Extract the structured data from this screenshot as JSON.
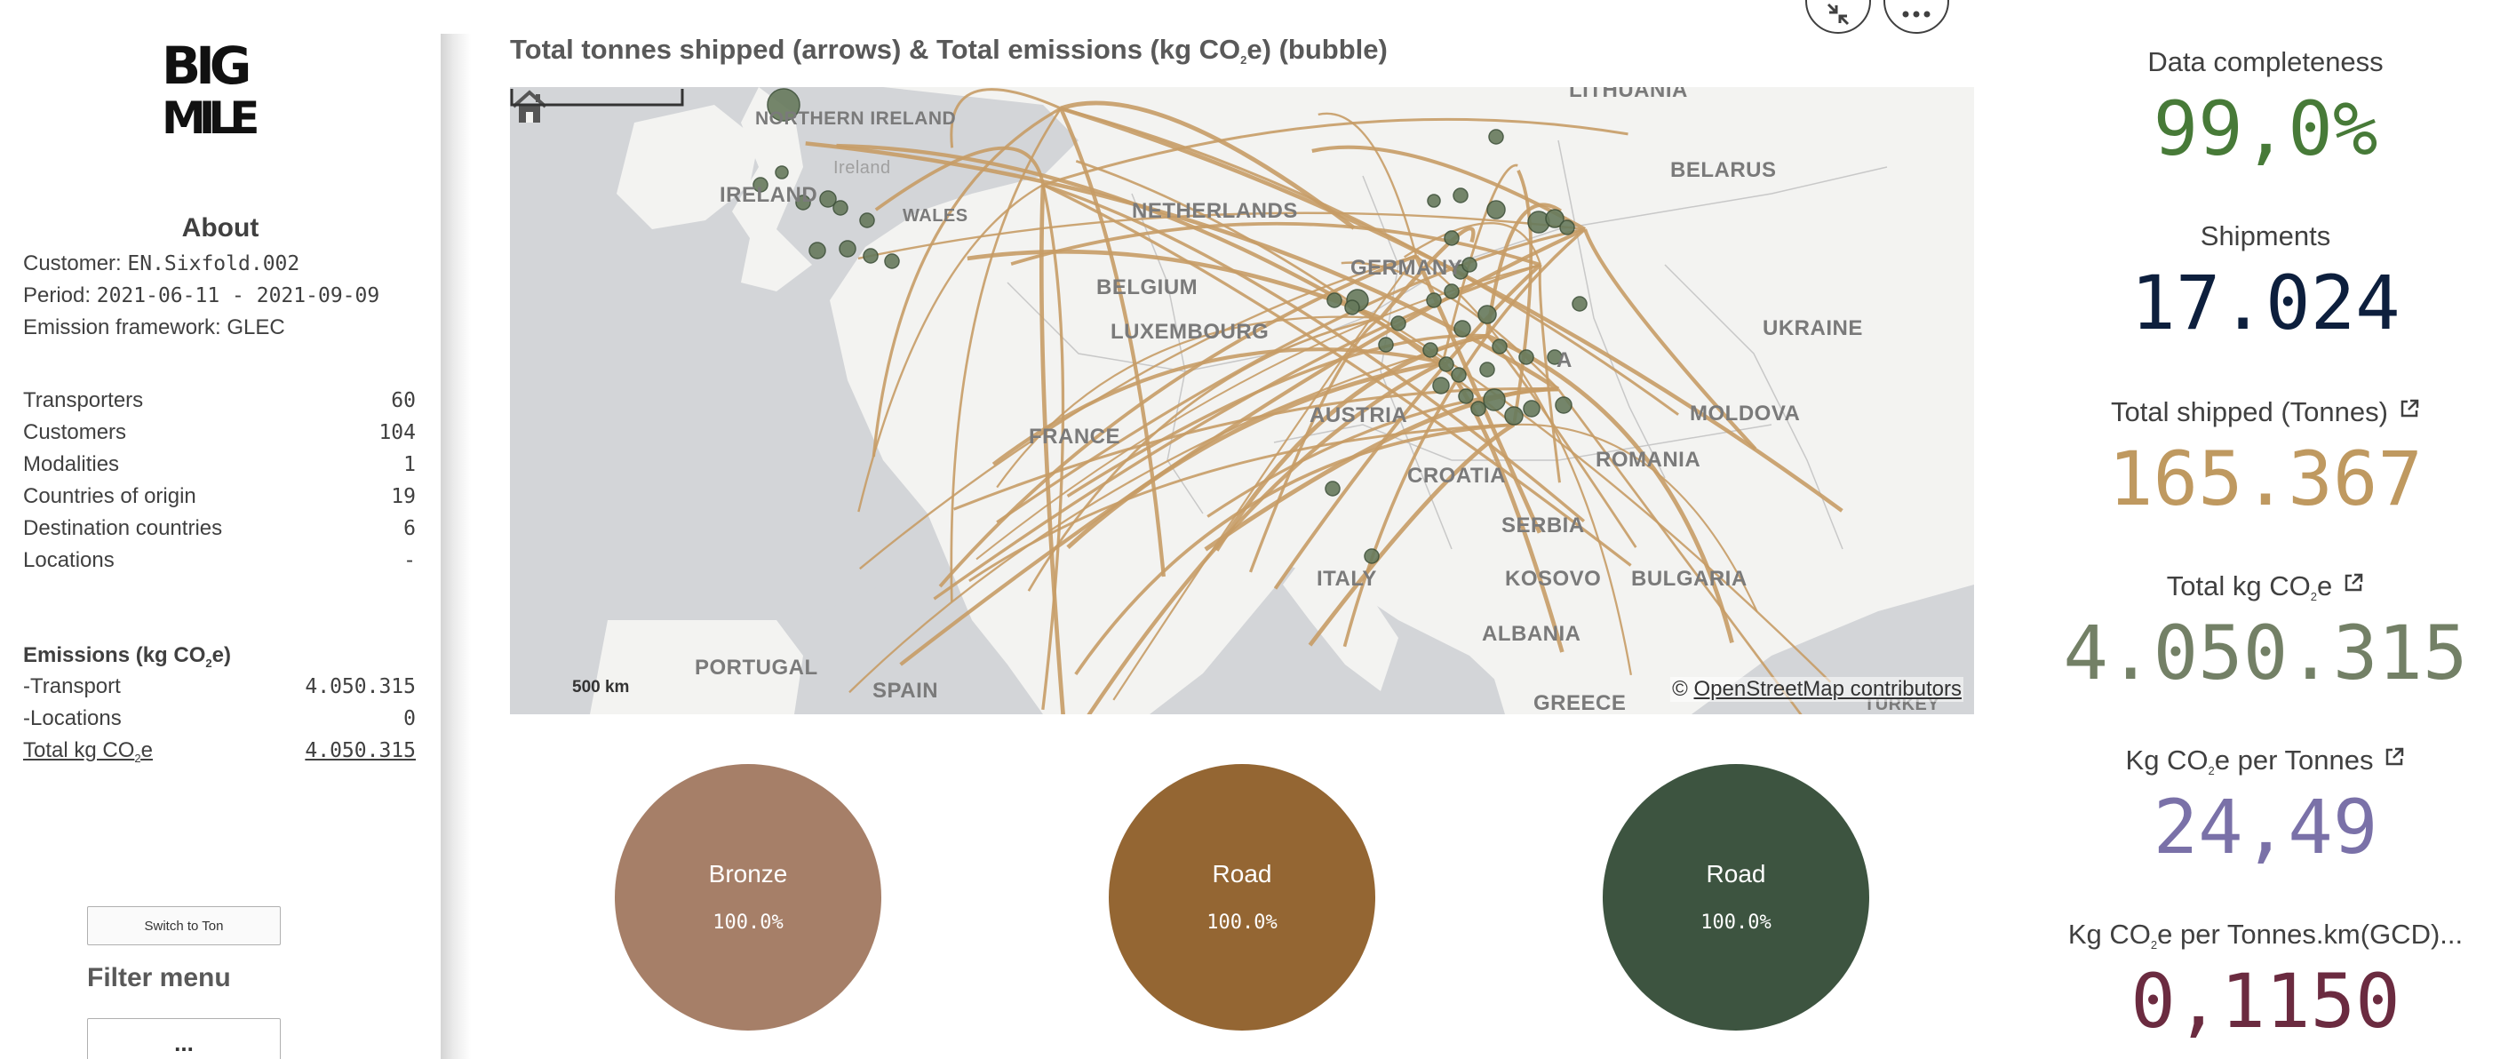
{
  "sidebar": {
    "about_title": "About",
    "customer_label": "Customer:",
    "customer_value": "EN.Sixfold.002",
    "period_label": "Period:",
    "period_value": "2021-06-11 - 2021-09-09",
    "framework_label": "Emission framework:",
    "framework_value": "GLEC",
    "stats": [
      {
        "label": "Transporters",
        "value": "60"
      },
      {
        "label": "Customers",
        "value": "104"
      },
      {
        "label": "Modalities",
        "value": "1"
      },
      {
        "label": "Countries of origin",
        "value": "19"
      },
      {
        "label": "Destination countries",
        "value": "6"
      },
      {
        "label": "Locations",
        "value": "-"
      }
    ],
    "emissions": {
      "title_pre": "Emissions (kg CO",
      "title_sub": "2",
      "title_post": "e)",
      "transport_label": "-Transport",
      "transport_value": "4.050.315",
      "locations_label": "-Locations",
      "locations_value": "0",
      "total_pre": "Total kg CO",
      "total_sub": "2",
      "total_post": "e",
      "total_value": "4.050.315"
    },
    "switch_button": "Switch to Ton",
    "filter_title": "Filter menu",
    "filter_button": "..."
  },
  "logo": {
    "line1": "BIG",
    "line2": "MILE"
  },
  "map": {
    "title_pre": "Total tonnes shipped (arrows) & Total emissions (kg CO",
    "title_sub": "2",
    "title_post": "e) (bubble)",
    "scale_label": "500 km",
    "attribution_symbol": "©",
    "attribution_link": "OpenStreetMap contributors",
    "country_labels": {
      "northern_ireland": "NORTHERN IRELAND",
      "ireland_native": "Ireland",
      "ireland": "IRELAND",
      "wales": "WALES",
      "netherlands": "NETHERLANDS",
      "belgium": "BELGIUM",
      "luxembourg": "LUXEMBOURG",
      "germany": "GERMANY",
      "france": "FRANCE",
      "austria": "AUSTRIA",
      "croatia": "CROATIA",
      "italy": "ITALY",
      "portugal": "PORTUGAL",
      "spain": "SPAIN",
      "lithuania": "LITHUANIA",
      "belarus": "BELARUS",
      "ukraine": "UKRAINE",
      "moldova": "MOLDOVA",
      "romania": "ROMANIA",
      "serbia": "SERBIA",
      "kosovo": "KOSOVO",
      "bulgaria": "BULGARIA",
      "albania": "ALBANIA",
      "greece": "GREECE",
      "turkey": "TÜRKEY",
      "slovakia_fragment": "A"
    }
  },
  "pies": [
    {
      "label": "Bronze",
      "value": "100.0%",
      "color": "#a67f68"
    },
    {
      "label": "Road",
      "value": "100.0%",
      "color": "#946633"
    },
    {
      "label": "Road",
      "value": "100.0%",
      "color": "#3d5440"
    }
  ],
  "kpis": [
    {
      "label": "Data completeness",
      "value": "99,0%",
      "color": "#477a38",
      "external": false
    },
    {
      "label": "Shipments",
      "value": "17.024",
      "color": "#0d1f3d",
      "external": false
    },
    {
      "label": "Total shipped (Tonnes)",
      "value": "165.367",
      "color": "#bf9960",
      "external": true
    },
    {
      "label_pre": "Total kg CO",
      "label_sub": "2",
      "label_post": "e",
      "value": "4.050.315",
      "color": "#738066",
      "external": true
    },
    {
      "label_pre": "Kg CO",
      "label_sub": "2",
      "label_post": "e per Tonnes",
      "value": "24,49",
      "color": "#7a71a8",
      "external": true
    },
    {
      "label_pre": "Kg CO",
      "label_sub": "2",
      "label_post": "e per Tonnes.km(GCD)...",
      "value": "0,1150",
      "color": "#6b2b40",
      "external": false
    }
  ],
  "colors": {
    "arrow": "#c79c66",
    "bubble": "#677a5c"
  }
}
